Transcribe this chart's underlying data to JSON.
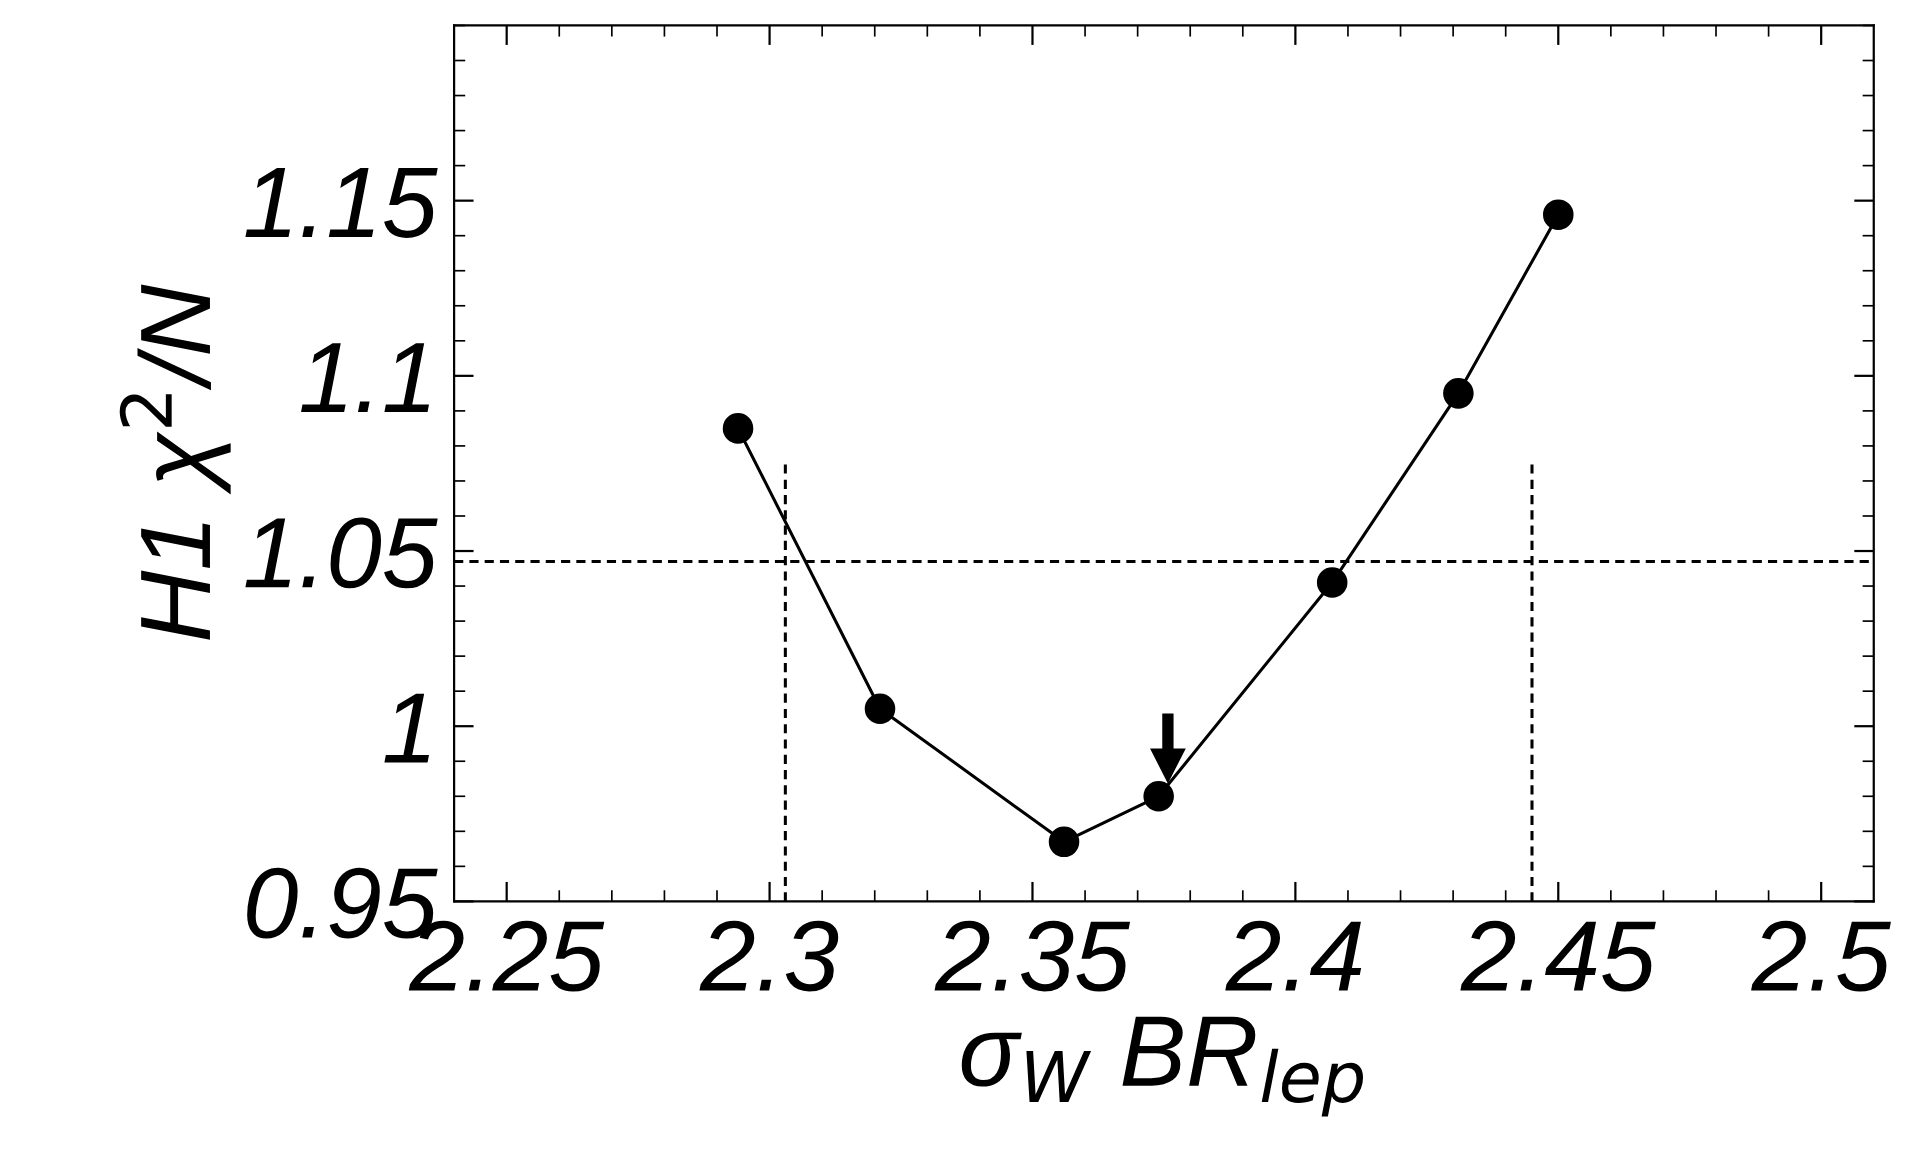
{
  "chart_data": {
    "type": "line",
    "xlabel": "σ$_{W}$ BR$_{lep}$",
    "ylabel": "H1 χ$^{2}$/N",
    "xlim": [
      2.24,
      2.51
    ],
    "ylim": [
      0.95,
      1.2
    ],
    "xticks": [
      {
        "value": 2.24,
        "label": null
      },
      2.25,
      {
        "value": 2.26,
        "label": null
      },
      {
        "value": 2.27,
        "label": null
      },
      {
        "value": 2.28,
        "label": null
      },
      {
        "value": 2.29,
        "label": null
      },
      2.3,
      {
        "value": 2.31,
        "label": null
      },
      {
        "value": 2.32,
        "label": null
      },
      {
        "value": 2.33,
        "label": null
      },
      {
        "value": 2.34,
        "label": null
      },
      2.35,
      {
        "value": 2.36,
        "label": null
      },
      {
        "value": 2.37,
        "label": null
      },
      {
        "value": 2.38,
        "label": null
      },
      {
        "value": 2.39,
        "label": null
      },
      2.4,
      {
        "value": 2.41,
        "label": null
      },
      {
        "value": 2.42,
        "label": null
      },
      {
        "value": 2.43,
        "label": null
      },
      {
        "value": 2.44,
        "label": null
      },
      2.45,
      {
        "value": 2.46,
        "label": null
      },
      {
        "value": 2.47,
        "label": null
      },
      {
        "value": 2.48,
        "label": null
      },
      {
        "value": 2.49,
        "label": null
      },
      2.5
    ],
    "yticks": [
      0.95,
      {
        "value": 0.96,
        "label": null
      },
      {
        "value": 0.97,
        "label": null
      },
      {
        "value": 0.98,
        "label": null
      },
      {
        "value": 0.99,
        "label": null
      },
      1,
      {
        "value": 1.01,
        "label": null
      },
      {
        "value": 1.02,
        "label": null
      },
      {
        "value": 1.03,
        "label": null
      },
      {
        "value": 1.04,
        "label": null
      },
      1.05,
      {
        "value": 1.06,
        "label": null
      },
      {
        "value": 1.07,
        "label": null
      },
      {
        "value": 1.08,
        "label": null
      },
      {
        "value": 1.09,
        "label": null
      },
      1.1,
      {
        "value": 1.11,
        "label": null
      },
      {
        "value": 1.12,
        "label": null
      },
      {
        "value": 1.13,
        "label": null
      },
      {
        "value": 1.14,
        "label": null
      },
      1.15,
      {
        "value": 1.16,
        "label": null
      },
      {
        "value": 1.17,
        "label": null
      },
      {
        "value": 1.18,
        "label": null
      },
      {
        "value": 1.19,
        "label": null
      },
      {
        "value": 1.2,
        "label": null
      }
    ],
    "grid": false,
    "legend": false,
    "series": [
      {
        "color": "#000000",
        "marker": "circle",
        "line_style": "solid",
        "x": [
          2.294,
          2.321,
          2.356,
          2.374,
          2.407,
          2.431,
          2.45
        ],
        "values": [
          1.085,
          1.005,
          0.967,
          0.98,
          1.041,
          1.095,
          1.146
        ]
      },
      {
        "color": "#000000",
        "marker": "none",
        "line_style": "dashed",
        "x": [
          2.303,
          2.303
        ],
        "values": [
          0.95,
          1.075
        ]
      },
      {
        "color": "#000000",
        "marker": "none",
        "line_style": "dashed",
        "x": [
          2.445,
          2.445
        ],
        "values": [
          0.95,
          1.075
        ]
      }
    ],
    "ref_lines": [
      {
        "axis": "y",
        "value": 1.047,
        "color": "#000000",
        "line_style": "dashed"
      }
    ]
  }
}
